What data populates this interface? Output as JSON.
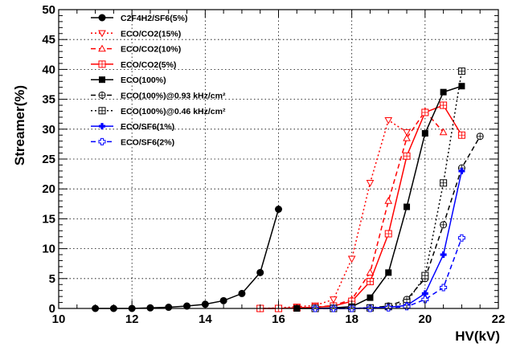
{
  "chart_data": {
    "type": "line",
    "title": "",
    "xlabel": "HV(kV)",
    "ylabel": "Streamer(%)",
    "xlim": [
      10,
      22
    ],
    "ylim": [
      0,
      50
    ],
    "x_ticks": [
      "10",
      "12",
      "14",
      "16",
      "18",
      "20",
      "22"
    ],
    "y_ticks": [
      "0",
      "5",
      "10",
      "15",
      "20",
      "25",
      "30",
      "35",
      "40",
      "45",
      "50"
    ],
    "grid": true,
    "legend_position": "top-left",
    "series": [
      {
        "name": "C2F4H2/SF6(5%)",
        "color": "#000000",
        "dash": "solid",
        "marker": "filled-circle",
        "x": [
          11,
          11.5,
          12,
          12.5,
          13,
          13.5,
          14,
          14.5,
          15,
          15.5,
          16
        ],
        "y": [
          0,
          0,
          0,
          0.1,
          0.2,
          0.4,
          0.7,
          1.3,
          2.5,
          6.0,
          16.6
        ]
      },
      {
        "name": "ECO/CO2(15%)",
        "color": "#ff0000",
        "dash": "dotted",
        "marker": "open-triangle-down",
        "x": [
          15.5,
          16,
          16.5,
          17,
          17.5,
          18,
          18.5,
          19,
          19.5
        ],
        "y": [
          0,
          0.1,
          0.3,
          0.5,
          1.5,
          8.3,
          21.0,
          31.5,
          29.5
        ]
      },
      {
        "name": "ECO/CO2(10%)",
        "color": "#ff0000",
        "dash": "dashed",
        "marker": "open-triangle-up",
        "x": [
          15.5,
          16,
          16.5,
          17,
          17.5,
          18,
          18.5,
          19,
          19.5,
          20,
          20.5
        ],
        "y": [
          0,
          0,
          0.1,
          0.2,
          0.5,
          1.5,
          6.0,
          18.0,
          28.5,
          33.0,
          29.5
        ]
      },
      {
        "name": "ECO/CO2(5%)",
        "color": "#ff0000",
        "dash": "solid",
        "marker": "open-square-plus",
        "x": [
          15.5,
          16,
          16.5,
          17,
          17.5,
          18,
          18.5,
          19,
          19.5,
          20,
          20.5,
          21
        ],
        "y": [
          0,
          0,
          0.1,
          0.2,
          0.4,
          1.2,
          4.5,
          12.5,
          25.5,
          32.8,
          34.0,
          29.0
        ]
      },
      {
        "name": "ECO(100%)",
        "color": "#000000",
        "dash": "solid",
        "marker": "filled-square",
        "x": [
          16.5,
          17,
          17.5,
          18,
          18.5,
          19,
          19.5,
          20,
          20.5,
          21
        ],
        "y": [
          0,
          0,
          0.1,
          0.3,
          1.8,
          6.0,
          17.0,
          29.3,
          36.2,
          37.2
        ]
      },
      {
        "name": "ECO(100%)@0.93 kHz/cm²",
        "color": "#000000",
        "dash": "dashed",
        "marker": "open-circle-plus",
        "x": [
          17,
          17.5,
          18,
          18.5,
          19,
          19.5,
          20,
          20.5,
          21,
          21.5
        ],
        "y": [
          0,
          0,
          0,
          0.1,
          0.4,
          1.5,
          5.0,
          14.0,
          23.5,
          28.8
        ]
      },
      {
        "name": "ECO(100%)@0.46 kHz/cm²",
        "color": "#000000",
        "dash": "dotted",
        "marker": "open-square-plus",
        "x": [
          17,
          17.5,
          18,
          18.5,
          19,
          19.5,
          20,
          20.5,
          21
        ],
        "y": [
          0,
          0,
          0,
          0.1,
          0.3,
          1.0,
          5.5,
          21.0,
          39.7
        ]
      },
      {
        "name": "ECO/SF6(1%)",
        "color": "#0000ff",
        "dash": "solid",
        "marker": "filled-cross",
        "x": [
          17,
          17.5,
          18,
          18.5,
          19,
          19.5,
          20,
          20.5,
          21
        ],
        "y": [
          0,
          0,
          0,
          0.1,
          0.2,
          0.5,
          2.5,
          9.0,
          23.0
        ]
      },
      {
        "name": "ECO/SF6(2%)",
        "color": "#0000ff",
        "dash": "dashed",
        "marker": "open-cross",
        "x": [
          17,
          17.5,
          18,
          18.5,
          19,
          19.5,
          20,
          20.5,
          21
        ],
        "y": [
          0,
          0,
          0,
          0,
          0.1,
          0.3,
          1.5,
          3.5,
          11.8
        ]
      }
    ]
  }
}
